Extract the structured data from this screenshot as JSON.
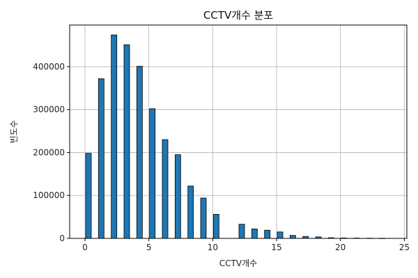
{
  "chart_data": {
    "type": "bar",
    "title": "CCTV개수 분포",
    "xlabel": "CCTV개수",
    "ylabel": "빈도수",
    "x_ticks": [
      0,
      5,
      10,
      15,
      20,
      25
    ],
    "y_ticks": [
      0,
      100000,
      200000,
      300000,
      400000
    ],
    "xlim": [
      -1.2,
      25.2
    ],
    "ylim": [
      0,
      497000
    ],
    "grid": true,
    "bar_color": "#1f77b4",
    "bar_edge_color": "#000000",
    "x": [
      0,
      1,
      2,
      3,
      4,
      5,
      6,
      7,
      8,
      9,
      10,
      12,
      13,
      14,
      15,
      16,
      17,
      18,
      19,
      20,
      21,
      22,
      23
    ],
    "values": [
      198000,
      372000,
      474000,
      451000,
      401000,
      302000,
      230000,
      195000,
      122000,
      94000,
      56000,
      33000,
      22000,
      19000,
      15000,
      7000,
      4500,
      3500,
      1500,
      1000,
      800,
      500,
      300
    ]
  }
}
